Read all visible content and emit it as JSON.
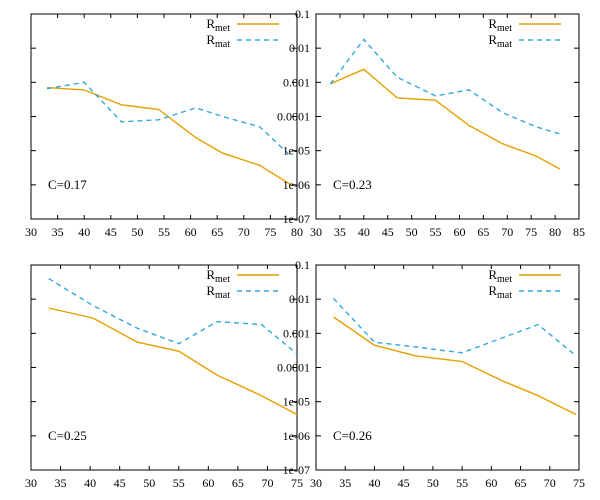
{
  "chart_data": [
    {
      "type": "line",
      "annotation": "C=0.17",
      "xlim": [
        30,
        80
      ],
      "xticks": [
        "30",
        "35",
        "40",
        "45",
        "50",
        "55",
        "60",
        "65",
        "70",
        "75",
        "80"
      ],
      "ylim_log10": [
        -7,
        -1
      ],
      "yticks_shown": false,
      "legend_position": "top-right",
      "series": [
        {
          "name": "R_met",
          "color": "#E69F00",
          "dash": "solid",
          "x": [
            33,
            40,
            47,
            54,
            61,
            66,
            73,
            79
          ],
          "y": [
            0.0007,
            0.0006,
            0.00022,
            0.00016,
            2.4e-05,
            8.5e-06,
            3.7e-06,
            9.7e-07
          ]
        },
        {
          "name": "R_mat",
          "color": "#33A7E0",
          "dash": "dashed",
          "x": [
            33,
            40,
            47,
            54,
            61,
            66,
            73,
            79
          ],
          "y": [
            0.00065,
            0.001,
            7e-05,
            8e-05,
            0.00018,
            0.0001,
            5e-05,
            6.5e-06
          ]
        }
      ]
    },
    {
      "type": "line",
      "annotation": "C=0.23",
      "xlim": [
        30,
        85
      ],
      "xticks": [
        "30",
        "35",
        "40",
        "45",
        "50",
        "55",
        "60",
        "65",
        "70",
        "75",
        "80",
        "85"
      ],
      "ylim_log10": [
        -7,
        -1
      ],
      "yticks": [
        "0.1",
        "0.01",
        "0.001",
        "0.0001",
        "1e-05",
        "1e-06",
        "1e-07"
      ],
      "legend_position": "top-right",
      "series": [
        {
          "name": "R_met",
          "color": "#E69F00",
          "dash": "solid",
          "x": [
            33,
            40,
            47,
            55,
            62,
            69,
            76,
            81
          ],
          "y": [
            0.0009,
            0.0024,
            0.00035,
            0.0003,
            5.5e-05,
            1.6e-05,
            7e-06,
            2.9e-06
          ]
        },
        {
          "name": "R_mat",
          "color": "#33A7E0",
          "dash": "dashed",
          "x": [
            33,
            40,
            47,
            55,
            62,
            69,
            76,
            81
          ],
          "y": [
            0.0009,
            0.018,
            0.0014,
            0.0004,
            0.0006,
            0.00013,
            5e-05,
            3.1e-05
          ]
        }
      ]
    },
    {
      "type": "line",
      "annotation": "C=0.25",
      "xlim": [
        30,
        75
      ],
      "xticks": [
        "30",
        "35",
        "40",
        "45",
        "50",
        "55",
        "60",
        "65",
        "70",
        "75"
      ],
      "ylim_log10": [
        -7,
        -1
      ],
      "yticks_shown": false,
      "legend_position": "top-right",
      "series": [
        {
          "name": "R_met",
          "color": "#E69F00",
          "dash": "solid",
          "x": [
            33,
            40.5,
            48,
            55,
            61.5,
            69,
            75
          ],
          "y": [
            0.0055,
            0.0028,
            0.00055,
            0.0003,
            6e-05,
            1.5e-05,
            4.2e-06
          ]
        },
        {
          "name": "R_mat",
          "color": "#33A7E0",
          "dash": "dashed",
          "x": [
            33,
            40.5,
            48,
            55,
            61.5,
            69,
            75
          ],
          "y": [
            0.04,
            0.0065,
            0.0014,
            0.0005,
            0.0022,
            0.0018,
            0.00025
          ]
        }
      ]
    },
    {
      "type": "line",
      "annotation": "C=0.26",
      "xlim": [
        30,
        75
      ],
      "xticks": [
        "30",
        "35",
        "40",
        "45",
        "50",
        "55",
        "60",
        "65",
        "70",
        "75"
      ],
      "ylim_log10": [
        -7,
        -1
      ],
      "yticks": [
        "0.1",
        "0.01",
        "0.001",
        "0.0001",
        "1e-05",
        "1e-06",
        "1e-07"
      ],
      "legend_position": "top-right",
      "series": [
        {
          "name": "R_met",
          "color": "#E69F00",
          "dash": "solid",
          "x": [
            33,
            40,
            47,
            55,
            62,
            68,
            74.5
          ],
          "y": [
            0.003,
            0.00045,
            0.00022,
            0.00015,
            4e-05,
            1.5e-05,
            4.2e-06
          ]
        },
        {
          "name": "R_mat",
          "color": "#33A7E0",
          "dash": "dashed",
          "x": [
            33,
            40,
            47,
            55,
            62,
            68,
            74.5
          ],
          "y": [
            0.0105,
            0.00055,
            0.0004,
            0.00027,
            0.00075,
            0.0018,
            0.00022
          ]
        }
      ]
    }
  ]
}
